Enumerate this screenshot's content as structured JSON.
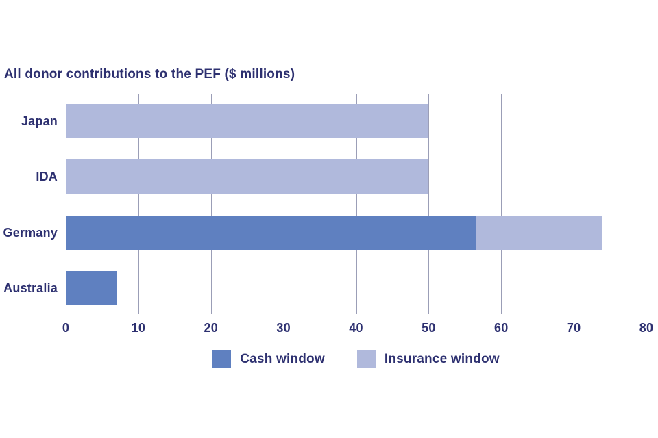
{
  "title": "All donor contributions to the PEF ($ millions)",
  "colors": {
    "text_navy": "#2d3070",
    "cash_window": "#5f80c0",
    "insurance_window": "#b0b9dc",
    "gridline": "#9b9eb7",
    "background": "#ffffff"
  },
  "chart_data": {
    "type": "bar",
    "orientation": "horizontal",
    "stacked": true,
    "title": "All donor contributions to the PEF ($ millions)",
    "categories": [
      "Japan",
      "IDA",
      "Germany",
      "Australia"
    ],
    "series": [
      {
        "name": "Cash window",
        "color_key": "cash_window",
        "values": [
          0,
          0,
          56.5,
          7
        ]
      },
      {
        "name": "Insurance window",
        "color_key": "insurance_window",
        "values": [
          50,
          50,
          17.5,
          0
        ]
      }
    ],
    "totals": [
      50,
      50,
      74,
      7
    ],
    "xlabel": "",
    "ylabel": "",
    "xlim": [
      0,
      80
    ],
    "x_ticks": [
      0,
      10,
      20,
      30,
      40,
      50,
      60,
      70,
      80
    ],
    "grid": "vertical-only",
    "legend_position": "bottom-center"
  },
  "legend": {
    "items": [
      {
        "label": "Cash window",
        "color_key": "cash_window"
      },
      {
        "label": "Insurance window",
        "color_key": "insurance_window"
      }
    ]
  }
}
